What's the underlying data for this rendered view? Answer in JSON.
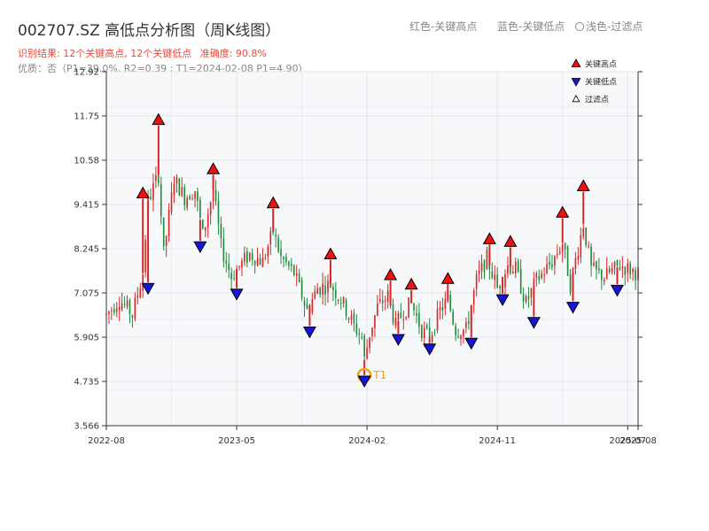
{
  "header": {
    "title": "002707.SZ 高低点分析图（周K线图）",
    "result_label": "识别结果: 12个关键高点, 12个关键低点",
    "accuracy_label": "准确度: 90.8%",
    "quality_line": "优质：否（P1=39.0%, R2=0.39 ; T1=2024-02-08 P1=4.90）",
    "legend_red": "红色-关键高点",
    "legend_blue": "蓝色-关键低点",
    "legend_light": "浅色-过滤点"
  },
  "chart_data": {
    "type": "candlestick",
    "title": "002707.SZ 高低点分析图（周K线图）",
    "x_tick_labels": [
      "2022-08",
      "2023-05",
      "2024-02",
      "2024-11",
      "2025-07",
      "2025-08"
    ],
    "y_tick_labels": [
      "3.566",
      "4.735",
      "5.905",
      "7.075",
      "8.245",
      "9.415",
      "10.58",
      "11.75",
      "12.92"
    ],
    "ylim": [
      3.566,
      12.92
    ],
    "xlim_weeks": [
      0,
      204
    ],
    "x_tick_weeks": [
      0,
      50,
      100,
      150,
      200,
      204
    ],
    "grid": true,
    "background": "#f7f8fa",
    "colors": {
      "up": "#d62728",
      "down": "#1e8b3c",
      "high": "#ee1111",
      "low": "#1515dd",
      "t1": "#f0a020"
    },
    "legend": [
      "关键高点",
      "关键低点",
      "过滤点"
    ],
    "legend_position": "top-right",
    "anchors": [
      [
        0,
        6.5
      ],
      [
        5,
        6.9
      ],
      [
        10,
        6.5
      ],
      [
        14,
        7.6
      ],
      [
        16,
        9.5
      ],
      [
        20,
        10.2
      ],
      [
        22,
        8.1
      ],
      [
        26,
        10.1
      ],
      [
        30,
        9.6
      ],
      [
        34,
        9.8
      ],
      [
        37,
        8.6
      ],
      [
        41,
        9.8
      ],
      [
        44,
        8.3
      ],
      [
        48,
        7.5
      ],
      [
        50,
        7.7
      ],
      [
        55,
        8.1
      ],
      [
        60,
        7.9
      ],
      [
        64,
        8.7
      ],
      [
        67,
        8.0
      ],
      [
        72,
        7.6
      ],
      [
        77,
        6.6
      ],
      [
        81,
        7.2
      ],
      [
        86,
        7.3
      ],
      [
        90,
        6.9
      ],
      [
        95,
        6.2
      ],
      [
        98,
        5.9
      ],
      [
        99,
        5.3
      ],
      [
        101,
        6.0
      ],
      [
        104,
        6.7
      ],
      [
        108,
        7.0
      ],
      [
        111,
        6.2
      ],
      [
        114,
        6.6
      ],
      [
        117,
        6.8
      ],
      [
        121,
        6.1
      ],
      [
        124,
        5.9
      ],
      [
        128,
        6.6
      ],
      [
        131,
        6.9
      ],
      [
        134,
        6.1
      ],
      [
        138,
        6.1
      ],
      [
        142,
        7.4
      ],
      [
        146,
        8.0
      ],
      [
        150,
        7.2
      ],
      [
        154,
        7.8
      ],
      [
        157,
        7.7
      ],
      [
        161,
        6.8
      ],
      [
        165,
        7.4
      ],
      [
        171,
        7.9
      ],
      [
        175,
        8.4
      ],
      [
        178,
        7.3
      ],
      [
        183,
        8.9
      ],
      [
        186,
        7.7
      ],
      [
        191,
        7.5
      ],
      [
        197,
        7.8
      ],
      [
        204,
        7.6
      ]
    ],
    "key_highs": [
      {
        "week": 14,
        "price": 9.56
      },
      {
        "week": 20,
        "price": 11.5
      },
      {
        "week": 41,
        "price": 10.2
      },
      {
        "week": 64,
        "price": 9.3
      },
      {
        "week": 86,
        "price": 7.95
      },
      {
        "week": 109,
        "price": 7.4
      },
      {
        "week": 117,
        "price": 7.15
      },
      {
        "week": 131,
        "price": 7.3
      },
      {
        "week": 147,
        "price": 8.35
      },
      {
        "week": 155,
        "price": 8.28
      },
      {
        "week": 175,
        "price": 9.05
      },
      {
        "week": 183,
        "price": 9.75
      }
    ],
    "key_lows": [
      {
        "week": 16,
        "price": 7.35
      },
      {
        "week": 36,
        "price": 8.45
      },
      {
        "week": 50,
        "price": 7.2
      },
      {
        "week": 78,
        "price": 6.2
      },
      {
        "week": 99,
        "price": 4.9
      },
      {
        "week": 112,
        "price": 6.0
      },
      {
        "week": 124,
        "price": 5.75
      },
      {
        "week": 140,
        "price": 5.9
      },
      {
        "week": 152,
        "price": 7.05
      },
      {
        "week": 164,
        "price": 6.45
      },
      {
        "week": 179,
        "price": 6.85
      },
      {
        "week": 196,
        "price": 7.3
      }
    ],
    "t1_marker": {
      "week": 99,
      "price": 4.9,
      "label": "T1"
    }
  }
}
